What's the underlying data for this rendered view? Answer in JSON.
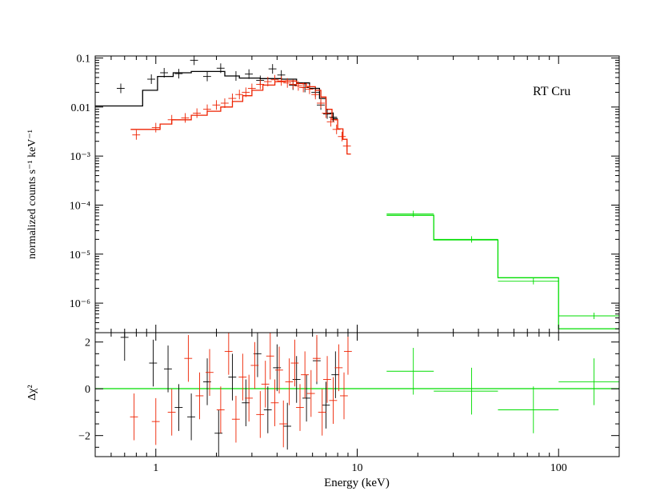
{
  "chart_data": [
    {
      "type": "step",
      "panel": "spectrum",
      "annotation": "RT Cru",
      "ylabel": "normalized counts s⁻¹ keV⁻¹",
      "xscale": "log",
      "yscale": "log",
      "xlim": [
        0.5,
        200
      ],
      "ylim": [
        2.5e-07,
        0.11
      ],
      "yticks": [
        {
          "value": 0.1,
          "label": "0.1"
        },
        {
          "value": 0.01,
          "label": "0.01"
        },
        {
          "value": 0.001,
          "label": "10⁻³"
        },
        {
          "value": 0.0001,
          "label": "10⁻⁴"
        },
        {
          "value": 1e-05,
          "label": "10⁻⁵"
        },
        {
          "value": 1e-06,
          "label": "10⁻⁶"
        }
      ],
      "series": [
        {
          "color": "#000000",
          "model_steps": [
            [
              0.5,
              0.0105
            ],
            [
              0.72,
              0.0105
            ],
            [
              0.86,
              0.022
            ],
            [
              1.02,
              0.042
            ],
            [
              1.22,
              0.05
            ],
            [
              1.5,
              0.053
            ],
            [
              2.2,
              0.043
            ],
            [
              2.6,
              0.039
            ],
            [
              3.3,
              0.038
            ],
            [
              4.2,
              0.037
            ],
            [
              5.0,
              0.031
            ],
            [
              5.8,
              0.024
            ],
            [
              6.5,
              0.015
            ],
            [
              7.0,
              0.0075
            ],
            [
              7.6,
              0.0058
            ],
            [
              8.0,
              0.0058
            ]
          ],
          "points": [
            {
              "x": 0.67,
              "y": 0.024
            },
            {
              "x": 0.95,
              "y": 0.037
            },
            {
              "x": 1.1,
              "y": 0.05
            },
            {
              "x": 1.3,
              "y": 0.048
            },
            {
              "x": 1.55,
              "y": 0.09
            },
            {
              "x": 1.8,
              "y": 0.042
            },
            {
              "x": 2.1,
              "y": 0.062
            },
            {
              "x": 2.5,
              "y": 0.043
            },
            {
              "x": 2.9,
              "y": 0.047
            },
            {
              "x": 3.3,
              "y": 0.035
            },
            {
              "x": 3.8,
              "y": 0.06
            },
            {
              "x": 4.2,
              "y": 0.045
            },
            {
              "x": 4.8,
              "y": 0.028
            },
            {
              "x": 5.5,
              "y": 0.025
            },
            {
              "x": 6.2,
              "y": 0.02
            },
            {
              "x": 6.6,
              "y": 0.011
            },
            {
              "x": 7.1,
              "y": 0.0072
            },
            {
              "x": 7.6,
              "y": 0.0062
            }
          ]
        },
        {
          "color": "#ee2200",
          "model_steps": [
            [
              0.75,
              0.0035
            ],
            [
              0.95,
              0.0035
            ],
            [
              1.05,
              0.0045
            ],
            [
              1.2,
              0.0055
            ],
            [
              1.5,
              0.0068
            ],
            [
              1.8,
              0.0082
            ],
            [
              2.1,
              0.01
            ],
            [
              2.4,
              0.013
            ],
            [
              2.7,
              0.017
            ],
            [
              3.0,
              0.022
            ],
            [
              3.4,
              0.028
            ],
            [
              3.9,
              0.033
            ],
            [
              4.4,
              0.034
            ],
            [
              5.0,
              0.03
            ],
            [
              5.6,
              0.026
            ],
            [
              6.2,
              0.022
            ],
            [
              6.6,
              0.016
            ],
            [
              7.0,
              0.009
            ],
            [
              7.5,
              0.0055
            ],
            [
              8.0,
              0.0036
            ],
            [
              8.5,
              0.0022
            ],
            [
              8.9,
              0.0011
            ],
            [
              9.3,
              0.0011
            ]
          ],
          "points": [
            {
              "x": 0.8,
              "y": 0.0027
            },
            {
              "x": 1.0,
              "y": 0.0038
            },
            {
              "x": 1.2,
              "y": 0.0055
            },
            {
              "x": 1.4,
              "y": 0.006
            },
            {
              "x": 1.6,
              "y": 0.0075
            },
            {
              "x": 1.8,
              "y": 0.009
            },
            {
              "x": 2.0,
              "y": 0.011
            },
            {
              "x": 2.2,
              "y": 0.012
            },
            {
              "x": 2.4,
              "y": 0.015
            },
            {
              "x": 2.6,
              "y": 0.018
            },
            {
              "x": 2.8,
              "y": 0.02
            },
            {
              "x": 3.0,
              "y": 0.024
            },
            {
              "x": 3.3,
              "y": 0.029
            },
            {
              "x": 3.6,
              "y": 0.033
            },
            {
              "x": 3.9,
              "y": 0.036
            },
            {
              "x": 4.2,
              "y": 0.034
            },
            {
              "x": 4.5,
              "y": 0.031
            },
            {
              "x": 4.8,
              "y": 0.029
            },
            {
              "x": 5.1,
              "y": 0.027
            },
            {
              "x": 5.4,
              "y": 0.025
            },
            {
              "x": 5.8,
              "y": 0.023
            },
            {
              "x": 6.2,
              "y": 0.018
            },
            {
              "x": 6.6,
              "y": 0.012
            },
            {
              "x": 7.0,
              "y": 0.0075
            },
            {
              "x": 7.4,
              "y": 0.005
            },
            {
              "x": 7.9,
              "y": 0.0035
            },
            {
              "x": 8.4,
              "y": 0.0025
            },
            {
              "x": 8.9,
              "y": 0.0016
            }
          ]
        },
        {
          "color": "#00dd00",
          "model_steps": [
            [
              14,
              6.2e-05
            ],
            [
              24,
              6.2e-05
            ],
            [
              24,
              1.95e-05
            ],
            [
              50,
              1.95e-05
            ],
            [
              50,
              3.3e-06
            ],
            [
              100,
              3.3e-06
            ],
            [
              100,
              3e-07
            ],
            [
              200,
              3e-07
            ]
          ],
          "points": [
            {
              "x": 19,
              "y": 6.6e-05,
              "xerr": [
                14,
                24
              ]
            },
            {
              "x": 37,
              "y": 2e-05,
              "xerr": [
                24,
                50
              ]
            },
            {
              "x": 75,
              "y": 2.8e-06,
              "xerr": [
                50,
                100
              ]
            },
            {
              "x": 150,
              "y": 5.5e-07,
              "xerr": [
                100,
                200
              ]
            }
          ]
        }
      ]
    },
    {
      "type": "scatter",
      "panel": "residuals",
      "xlabel": "Energy (keV)",
      "ylabel": "Δχ²",
      "xscale": "log",
      "xlim": [
        0.5,
        200
      ],
      "ylim": [
        -2.9,
        2.4
      ],
      "xticks": [
        {
          "value": 1,
          "label": "1"
        },
        {
          "value": 10,
          "label": "10"
        },
        {
          "value": 100,
          "label": "100"
        }
      ],
      "yticks": [
        {
          "value": 2,
          "label": "2"
        },
        {
          "value": 0,
          "label": "0"
        },
        {
          "value": -2,
          "label": "−2"
        }
      ],
      "zero_line_color": "#00dd00",
      "series": [
        {
          "color": "#000000",
          "points": [
            {
              "x": 0.7,
              "y": 2.2
            },
            {
              "x": 0.97,
              "y": 1.1
            },
            {
              "x": 1.15,
              "y": 0.85
            },
            {
              "x": 1.3,
              "y": -0.8
            },
            {
              "x": 1.5,
              "y": -1.2
            },
            {
              "x": 1.8,
              "y": 0.3
            },
            {
              "x": 2.05,
              "y": -1.9
            },
            {
              "x": 2.4,
              "y": 0.5
            },
            {
              "x": 2.8,
              "y": -0.6
            },
            {
              "x": 3.2,
              "y": 1.5
            },
            {
              "x": 3.6,
              "y": -0.9
            },
            {
              "x": 4.0,
              "y": 0.9
            },
            {
              "x": 4.5,
              "y": -1.6
            },
            {
              "x": 5.0,
              "y": 0.4
            },
            {
              "x": 5.6,
              "y": -0.4
            },
            {
              "x": 6.3,
              "y": 1.2
            },
            {
              "x": 7.0,
              "y": -0.7
            },
            {
              "x": 7.8,
              "y": 0.6
            }
          ]
        },
        {
          "color": "#ee2200",
          "points": [
            {
              "x": 0.78,
              "y": -1.2
            },
            {
              "x": 1.0,
              "y": -1.4
            },
            {
              "x": 1.2,
              "y": -1.0
            },
            {
              "x": 1.45,
              "y": 1.3
            },
            {
              "x": 1.65,
              "y": -0.3
            },
            {
              "x": 1.85,
              "y": 0.7
            },
            {
              "x": 2.1,
              "y": -0.9
            },
            {
              "x": 2.3,
              "y": 1.6
            },
            {
              "x": 2.5,
              "y": -1.3
            },
            {
              "x": 2.7,
              "y": 0.5
            },
            {
              "x": 2.9,
              "y": -0.4
            },
            {
              "x": 3.1,
              "y": 1.0
            },
            {
              "x": 3.3,
              "y": -1.1
            },
            {
              "x": 3.5,
              "y": 0.2
            },
            {
              "x": 3.7,
              "y": 1.4
            },
            {
              "x": 3.9,
              "y": -0.6
            },
            {
              "x": 4.1,
              "y": 0.8
            },
            {
              "x": 4.3,
              "y": -1.5
            },
            {
              "x": 4.6,
              "y": 0.3
            },
            {
              "x": 4.9,
              "y": 1.1
            },
            {
              "x": 5.2,
              "y": -0.8
            },
            {
              "x": 5.5,
              "y": 0.6
            },
            {
              "x": 5.9,
              "y": -0.2
            },
            {
              "x": 6.3,
              "y": 1.3
            },
            {
              "x": 6.7,
              "y": -1.0
            },
            {
              "x": 7.1,
              "y": 0.4
            },
            {
              "x": 7.6,
              "y": -0.5
            },
            {
              "x": 8.1,
              "y": 0.9
            },
            {
              "x": 8.6,
              "y": -0.3
            },
            {
              "x": 9.0,
              "y": 1.6
            }
          ]
        },
        {
          "color": "#00dd00",
          "points": [
            {
              "x": 19,
              "y": 0.75,
              "xerr": [
                14,
                24
              ]
            },
            {
              "x": 37,
              "y": -0.1,
              "xerr": [
                24,
                50
              ]
            },
            {
              "x": 75,
              "y": -0.9,
              "xerr": [
                50,
                100
              ]
            },
            {
              "x": 150,
              "y": 0.3,
              "xerr": [
                100,
                200
              ]
            }
          ]
        }
      ]
    }
  ]
}
